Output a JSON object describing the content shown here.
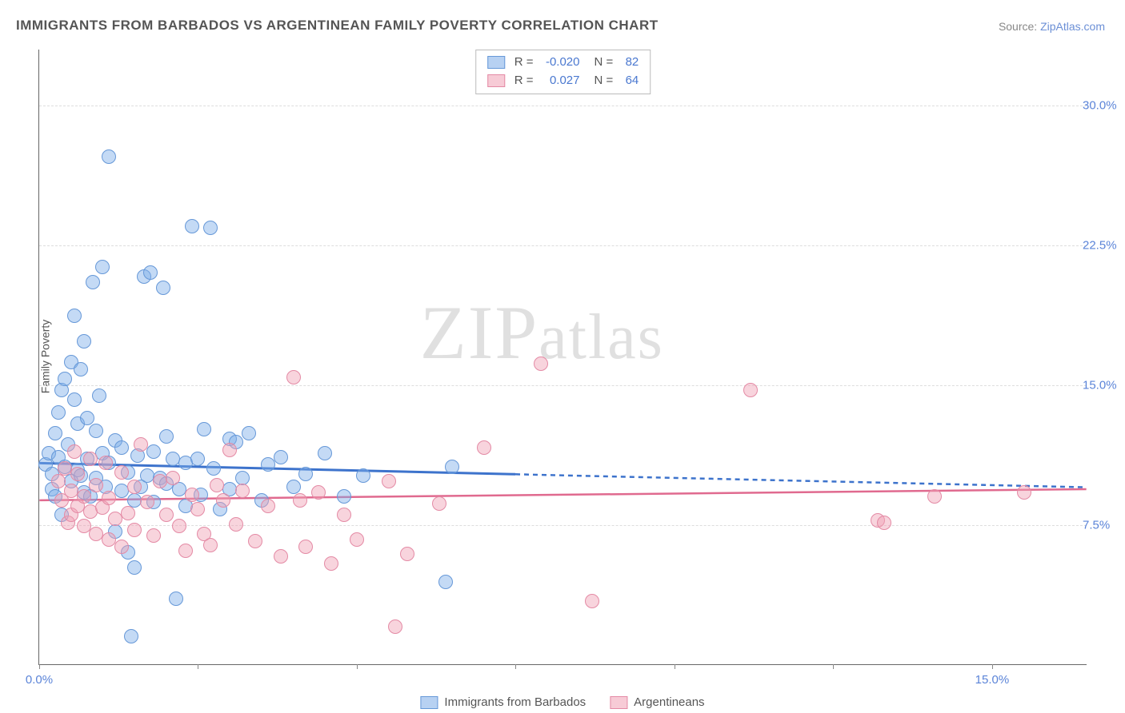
{
  "title": "IMMIGRANTS FROM BARBADOS VS ARGENTINEAN FAMILY POVERTY CORRELATION CHART",
  "source_prefix": "Source: ",
  "source_link": "ZipAtlas.com",
  "ylabel": "Family Poverty",
  "watermark": "ZIPatlas",
  "chart": {
    "type": "scatter",
    "xlim": [
      0,
      16.5
    ],
    "ylim": [
      0,
      33
    ],
    "xtick_labels": [
      "0.0%",
      "15.0%"
    ],
    "xtick_positions": [
      0,
      15
    ],
    "xtick_marks": [
      0,
      2.5,
      5,
      7.5,
      10,
      12.5,
      15
    ],
    "ytick_labels": [
      "7.5%",
      "15.0%",
      "22.5%",
      "30.0%"
    ],
    "ytick_positions": [
      7.5,
      15,
      22.5,
      30
    ],
    "background_color": "#ffffff",
    "grid_color": "#dddddd",
    "axis_color": "#666666",
    "label_color": "#5b84d8",
    "marker_radius": 9,
    "series": [
      {
        "name": "Immigrants from Barbados",
        "color_fill": "rgba(124,172,232,0.45)",
        "color_stroke": "#6698d8",
        "R": "-0.020",
        "N": "82",
        "trend": {
          "x1": 0,
          "y1": 10.8,
          "x2_solid": 7.5,
          "y2_solid": 10.2,
          "x2": 16.5,
          "y2": 9.5,
          "stroke": "#3d73cc",
          "width": 3
        },
        "points": [
          [
            0.1,
            10.7
          ],
          [
            0.15,
            11.3
          ],
          [
            0.2,
            9.4
          ],
          [
            0.2,
            10.2
          ],
          [
            0.25,
            12.4
          ],
          [
            0.25,
            9.0
          ],
          [
            0.3,
            11.1
          ],
          [
            0.3,
            13.5
          ],
          [
            0.35,
            8.0
          ],
          [
            0.35,
            14.7
          ],
          [
            0.4,
            10.6
          ],
          [
            0.4,
            15.3
          ],
          [
            0.45,
            11.8
          ],
          [
            0.5,
            16.2
          ],
          [
            0.5,
            9.8
          ],
          [
            0.55,
            14.2
          ],
          [
            0.55,
            18.7
          ],
          [
            0.6,
            10.4
          ],
          [
            0.6,
            12.9
          ],
          [
            0.65,
            10.1
          ],
          [
            0.65,
            15.8
          ],
          [
            0.7,
            17.3
          ],
          [
            0.7,
            9.2
          ],
          [
            0.75,
            13.2
          ],
          [
            0.75,
            11.0
          ],
          [
            0.8,
            9.0
          ],
          [
            0.85,
            20.5
          ],
          [
            0.9,
            10.0
          ],
          [
            0.9,
            12.5
          ],
          [
            0.95,
            14.4
          ],
          [
            1.0,
            11.3
          ],
          [
            1.0,
            21.3
          ],
          [
            1.05,
            9.5
          ],
          [
            1.1,
            27.2
          ],
          [
            1.1,
            10.8
          ],
          [
            1.2,
            7.1
          ],
          [
            1.2,
            12.0
          ],
          [
            1.3,
            9.3
          ],
          [
            1.3,
            11.6
          ],
          [
            1.4,
            6.0
          ],
          [
            1.4,
            10.3
          ],
          [
            1.45,
            1.5
          ],
          [
            1.5,
            5.2
          ],
          [
            1.5,
            8.8
          ],
          [
            1.55,
            11.2
          ],
          [
            1.6,
            9.5
          ],
          [
            1.65,
            20.8
          ],
          [
            1.7,
            10.1
          ],
          [
            1.75,
            21.0
          ],
          [
            1.8,
            11.4
          ],
          [
            1.8,
            8.7
          ],
          [
            1.9,
            10.0
          ],
          [
            1.95,
            20.2
          ],
          [
            2.0,
            9.7
          ],
          [
            2.0,
            12.2
          ],
          [
            2.1,
            11.0
          ],
          [
            2.15,
            3.5
          ],
          [
            2.2,
            9.4
          ],
          [
            2.3,
            10.8
          ],
          [
            2.3,
            8.5
          ],
          [
            2.4,
            23.5
          ],
          [
            2.5,
            11.0
          ],
          [
            2.55,
            9.1
          ],
          [
            2.6,
            12.6
          ],
          [
            2.7,
            23.4
          ],
          [
            2.75,
            10.5
          ],
          [
            2.85,
            8.3
          ],
          [
            3.0,
            12.1
          ],
          [
            3.0,
            9.4
          ],
          [
            3.1,
            11.9
          ],
          [
            3.2,
            10.0
          ],
          [
            3.3,
            12.4
          ],
          [
            3.5,
            8.8
          ],
          [
            3.6,
            10.7
          ],
          [
            3.8,
            11.1
          ],
          [
            4.0,
            9.5
          ],
          [
            4.2,
            10.2
          ],
          [
            4.5,
            11.3
          ],
          [
            4.8,
            9.0
          ],
          [
            5.1,
            10.1
          ],
          [
            6.4,
            4.4
          ],
          [
            6.5,
            10.6
          ]
        ]
      },
      {
        "name": "Argentineans",
        "color_fill": "rgba(240,160,180,0.45)",
        "color_stroke": "#e48aa5",
        "R": "0.027",
        "N": "64",
        "trend": {
          "x1": 0,
          "y1": 8.8,
          "x2_solid": 16.5,
          "y2_solid": 9.4,
          "x2": 16.5,
          "y2": 9.4,
          "stroke": "#e06a8f",
          "width": 2.5
        },
        "points": [
          [
            0.3,
            9.8
          ],
          [
            0.35,
            8.8
          ],
          [
            0.4,
            10.5
          ],
          [
            0.45,
            7.6
          ],
          [
            0.5,
            9.3
          ],
          [
            0.5,
            8.0
          ],
          [
            0.55,
            11.4
          ],
          [
            0.6,
            8.5
          ],
          [
            0.6,
            10.2
          ],
          [
            0.7,
            7.4
          ],
          [
            0.7,
            9.0
          ],
          [
            0.8,
            11.0
          ],
          [
            0.8,
            8.2
          ],
          [
            0.9,
            7.0
          ],
          [
            0.9,
            9.6
          ],
          [
            1.0,
            8.4
          ],
          [
            1.05,
            10.8
          ],
          [
            1.1,
            6.7
          ],
          [
            1.1,
            8.9
          ],
          [
            1.2,
            7.8
          ],
          [
            1.3,
            10.3
          ],
          [
            1.3,
            6.3
          ],
          [
            1.4,
            8.1
          ],
          [
            1.5,
            9.5
          ],
          [
            1.5,
            7.2
          ],
          [
            1.6,
            11.8
          ],
          [
            1.7,
            8.7
          ],
          [
            1.8,
            6.9
          ],
          [
            1.9,
            9.8
          ],
          [
            2.0,
            8.0
          ],
          [
            2.1,
            10.0
          ],
          [
            2.2,
            7.4
          ],
          [
            2.3,
            6.1
          ],
          [
            2.4,
            9.1
          ],
          [
            2.5,
            8.3
          ],
          [
            2.6,
            7.0
          ],
          [
            2.7,
            6.4
          ],
          [
            2.8,
            9.6
          ],
          [
            2.9,
            8.8
          ],
          [
            3.0,
            11.5
          ],
          [
            3.1,
            7.5
          ],
          [
            3.2,
            9.3
          ],
          [
            3.4,
            6.6
          ],
          [
            3.6,
            8.5
          ],
          [
            3.8,
            5.8
          ],
          [
            4.0,
            15.4
          ],
          [
            4.1,
            8.8
          ],
          [
            4.2,
            6.3
          ],
          [
            4.4,
            9.2
          ],
          [
            4.6,
            5.4
          ],
          [
            4.8,
            8.0
          ],
          [
            5.0,
            6.7
          ],
          [
            5.5,
            9.8
          ],
          [
            5.6,
            2.0
          ],
          [
            5.8,
            5.9
          ],
          [
            6.3,
            8.6
          ],
          [
            7.0,
            11.6
          ],
          [
            7.9,
            16.1
          ],
          [
            8.7,
            3.4
          ],
          [
            11.2,
            14.7
          ],
          [
            13.2,
            7.7
          ],
          [
            13.3,
            7.6
          ],
          [
            14.1,
            9.0
          ],
          [
            15.5,
            9.2
          ]
        ]
      }
    ]
  },
  "legend": {
    "item1": "Immigrants from Barbados",
    "item2": "Argentineans"
  }
}
